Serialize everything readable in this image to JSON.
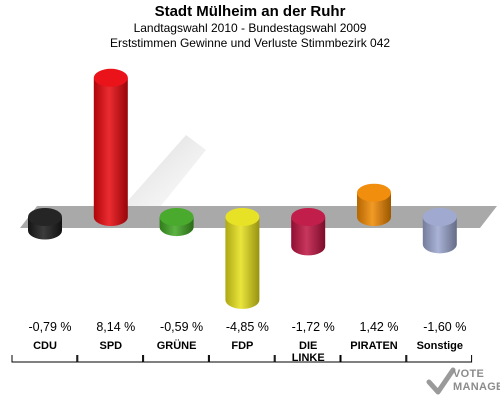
{
  "header": {
    "title": "Stadt Mülheim an der Ruhr",
    "subtitle1": "Landtagswahl 2010 - Bundestagswahl 2009",
    "subtitle2": "Erststimmen Gewinne und Verluste Stimmbezirk 042"
  },
  "chart_data": {
    "type": "bar",
    "title": "Stadt Mülheim an der Ruhr",
    "categories": [
      "CDU",
      "SPD",
      "GRÜNE",
      "FDP",
      "DIE LINKE",
      "PIRATEN",
      "Sonstige"
    ],
    "category_lines": [
      [
        "CDU"
      ],
      [
        "SPD"
      ],
      [
        "GRÜNE"
      ],
      [
        "FDP"
      ],
      [
        "DIE",
        "LINKE"
      ],
      [
        "PIRATEN"
      ],
      [
        "Sonstige"
      ]
    ],
    "values": [
      -0.79,
      8.14,
      -0.59,
      -4.85,
      -1.72,
      1.42,
      -1.6
    ],
    "value_labels": [
      "-0,79 %",
      "8,14 %",
      "-0,59 %",
      "-4,85 %",
      "-1,72 %",
      "1,42 %",
      "-1,60 %"
    ],
    "colors": [
      "#1a1a1a",
      "#e8070d",
      "#3fa522",
      "#e6e01a",
      "#be1241",
      "#f08800",
      "#9ba6cf"
    ],
    "grid": false,
    "legend": "none"
  },
  "logo": {
    "line1": "VOTE",
    "line2": "MANAGER"
  }
}
